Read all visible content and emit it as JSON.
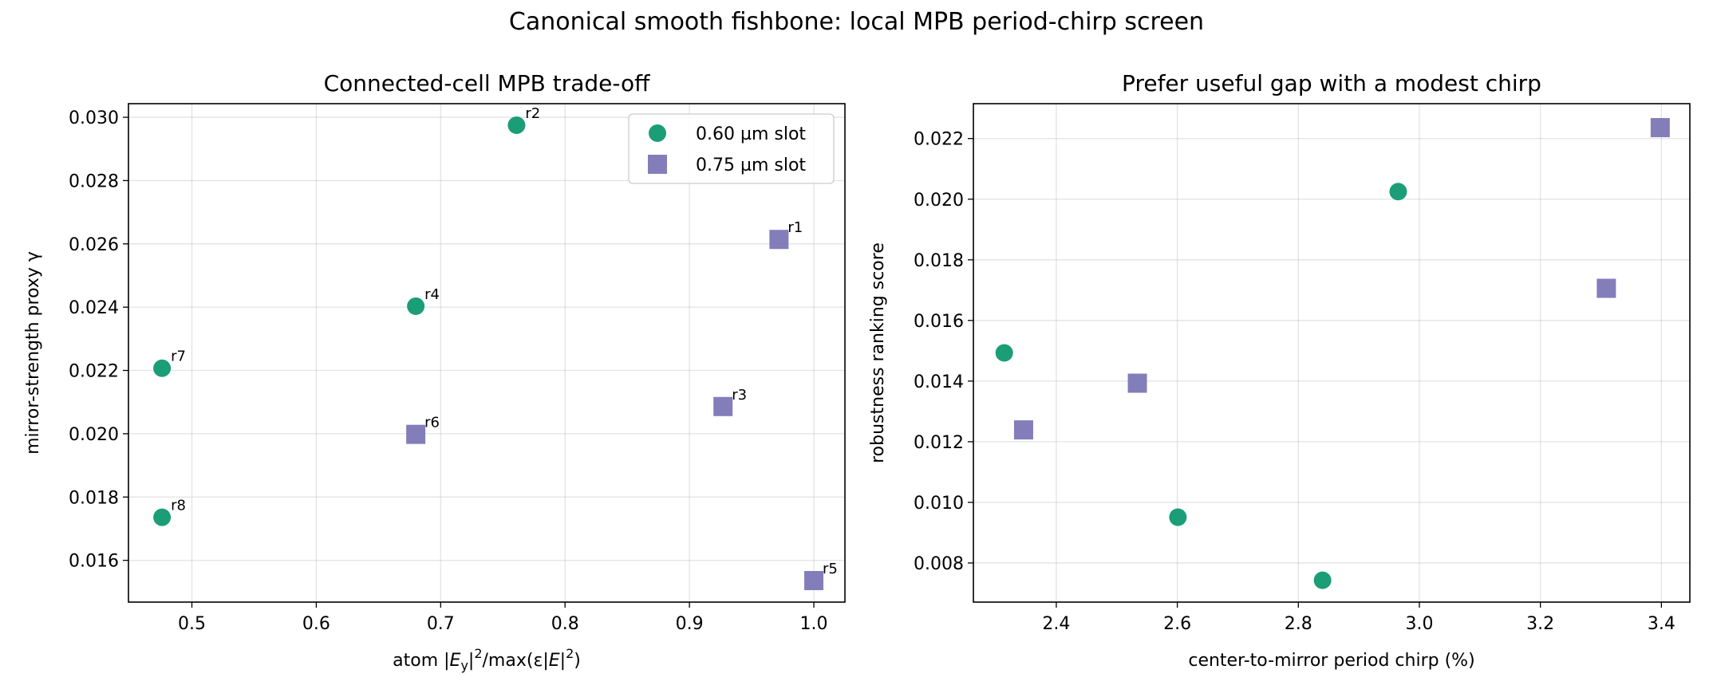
{
  "figure": {
    "title": "Canonical smooth fishbone: local MPB period-chirp screen"
  },
  "chart_data": [
    {
      "type": "scatter",
      "title": "Connected-cell MPB trade-off",
      "xlabel_parts": [
        "atom |",
        "E",
        "y",
        "|",
        "2",
        "/max(ε|",
        "E",
        "|",
        "2",
        ")"
      ],
      "ylabel": "mirror-strength proxy γ",
      "xlim": [
        0.449,
        1.025
      ],
      "ylim": [
        0.01468,
        0.03043
      ],
      "xticks": [
        "0.5",
        "0.6",
        "0.7",
        "0.8",
        "0.9",
        "1.0"
      ],
      "yticks": [
        "0.016",
        "0.018",
        "0.020",
        "0.022",
        "0.024",
        "0.026",
        "0.028",
        "0.030"
      ],
      "grid": true,
      "legend": "top-right",
      "series": [
        {
          "name": "0.60 µm slot",
          "marker": "circle",
          "color": "#1b9e77",
          "points": [
            {
              "x": 0.761,
              "y": 0.02975,
              "label": "r2"
            },
            {
              "x": 0.68,
              "y": 0.02403,
              "label": "r4"
            },
            {
              "x": 0.476,
              "y": 0.02207,
              "label": "r7"
            },
            {
              "x": 0.476,
              "y": 0.01736,
              "label": "r8"
            }
          ]
        },
        {
          "name": "0.75 µm slot",
          "marker": "square",
          "color": "#7570b3",
          "points": [
            {
              "x": 0.972,
              "y": 0.02614,
              "label": "r1"
            },
            {
              "x": 0.927,
              "y": 0.02086,
              "label": "r3"
            },
            {
              "x": 1.0,
              "y": 0.01536,
              "label": "r5"
            },
            {
              "x": 0.68,
              "y": 0.01998,
              "label": "r6"
            }
          ]
        }
      ]
    },
    {
      "type": "scatter",
      "title": "Prefer useful gap with a modest chirp",
      "xlabel": "center-to-mirror period chirp (%)",
      "ylabel": "robustness ranking score",
      "xlim": [
        2.263,
        3.447
      ],
      "ylim": [
        0.00671,
        0.02315
      ],
      "xticks": [
        "2.4",
        "2.6",
        "2.8",
        "3.0",
        "3.2",
        "3.4"
      ],
      "yticks": [
        "0.008",
        "0.010",
        "0.012",
        "0.014",
        "0.016",
        "0.018",
        "0.020",
        "0.022"
      ],
      "grid": true,
      "series": [
        {
          "marker": "circle",
          "color": "#1b9e77",
          "points": [
            {
              "x": 2.965,
              "y": 0.02025
            },
            {
              "x": 2.314,
              "y": 0.01493
            },
            {
              "x": 2.601,
              "y": 0.00951
            },
            {
              "x": 2.84,
              "y": 0.00743
            }
          ]
        },
        {
          "marker": "square",
          "color": "#7570b3",
          "points": [
            {
              "x": 3.398,
              "y": 0.02236
            },
            {
              "x": 3.309,
              "y": 0.01706
            },
            {
              "x": 2.534,
              "y": 0.01393
            },
            {
              "x": 2.346,
              "y": 0.01239
            }
          ]
        }
      ]
    }
  ]
}
